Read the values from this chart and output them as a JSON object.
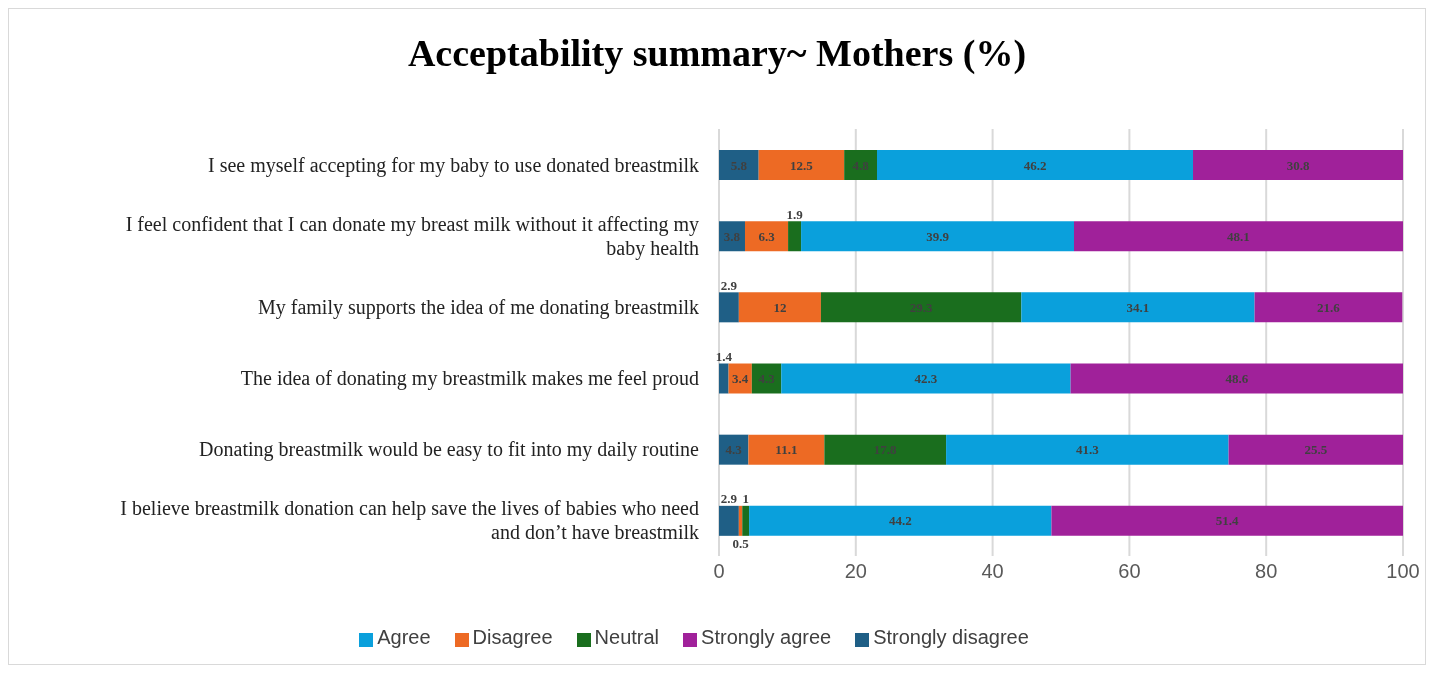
{
  "chart_data": {
    "type": "bar",
    "title": "Acceptability summary~ Mothers (%)",
    "orientation": "horizontal",
    "stacked": true,
    "categories": [
      "I see myself accepting for my baby to use donated breastmilk",
      "I feel confident that I can donate my breast milk without it affecting my baby health",
      "My family supports the idea of me donating breastmilk",
      "The idea of donating my breastmilk makes me feel proud",
      "Donating breastmilk would be easy to fit into my daily routine",
      "I believe breastmilk donation can help save the lives of babies who need and don’t have breastmilk"
    ],
    "series": [
      {
        "name": "Strongly disagree",
        "color": "#1f5f86",
        "values": [
          5.8,
          3.8,
          2.9,
          1.4,
          4.3,
          2.9
        ]
      },
      {
        "name": "Disagree",
        "color": "#ed6a24",
        "values": [
          12.5,
          6.3,
          12,
          3.4,
          11.1,
          0.5
        ]
      },
      {
        "name": "Neutral",
        "color": "#1a6e1e",
        "values": [
          4.8,
          1.9,
          29.3,
          4.3,
          17.8,
          1
        ]
      },
      {
        "name": "Agree",
        "color": "#0aa0dc",
        "values": [
          46.2,
          39.9,
          34.1,
          42.3,
          41.3,
          44.2
        ]
      },
      {
        "name": "Strongly agree",
        "color": "#a0219a",
        "values": [
          30.8,
          48.1,
          21.6,
          48.6,
          25.5,
          51.4
        ]
      }
    ],
    "xlim": [
      0,
      100
    ],
    "xticks": [
      0,
      20,
      40,
      60,
      80,
      100
    ],
    "grid": "x",
    "legend": "bottom",
    "data_labels": true
  }
}
